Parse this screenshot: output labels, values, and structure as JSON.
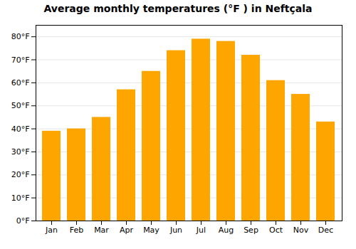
{
  "chart_data": {
    "type": "bar",
    "title": "Average monthly temperatures (°F ) in Neftçala",
    "categories": [
      "Jan",
      "Feb",
      "Mar",
      "Apr",
      "May",
      "Jun",
      "Jul",
      "Aug",
      "Sep",
      "Oct",
      "Nov",
      "Dec"
    ],
    "values": [
      39,
      40,
      45,
      57,
      65,
      74,
      79,
      78,
      72,
      61,
      55,
      43
    ],
    "color": "#FFA500",
    "ylim": [
      0,
      85
    ],
    "yticks": [
      {
        "value": 0,
        "label": "0°F"
      },
      {
        "value": 10,
        "label": "10°F"
      },
      {
        "value": 20,
        "label": "20°F"
      },
      {
        "value": 30,
        "label": "30°F"
      },
      {
        "value": 40,
        "label": "40°F"
      },
      {
        "value": 50,
        "label": "50°F"
      },
      {
        "value": 60,
        "label": "60°F"
      },
      {
        "value": 70,
        "label": "70°F"
      },
      {
        "value": 80,
        "label": "80°F"
      }
    ],
    "grid": true
  }
}
